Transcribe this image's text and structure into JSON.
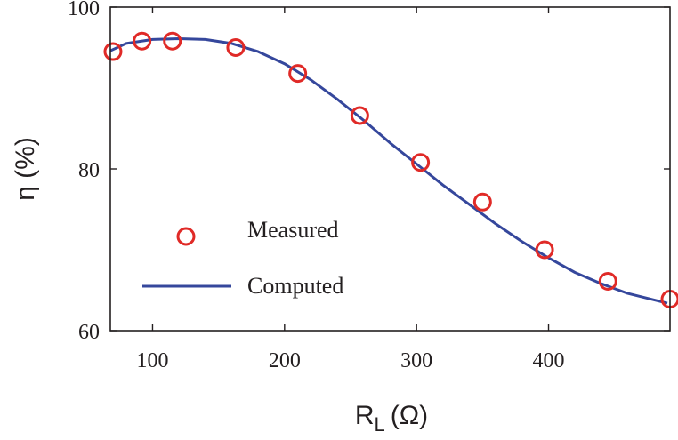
{
  "chart_data": {
    "type": "line",
    "title": "",
    "xlabel_main": "R",
    "xlabel_sub": "L",
    "xlabel_unit": "(Ω)",
    "ylabel": "η (%)",
    "xlim": [
      68,
      492
    ],
    "ylim": [
      60,
      100
    ],
    "xticks": [
      100,
      200,
      300,
      400
    ],
    "yticks": [
      60,
      80,
      100
    ],
    "legend_position": "lower-left",
    "series": [
      {
        "name": "Measured",
        "kind": "scatter",
        "color": "#e02a27",
        "x": [
          70,
          92,
          115,
          163,
          210,
          257,
          303,
          350,
          397,
          445,
          492
        ],
        "y": [
          94.5,
          95.8,
          95.8,
          95.0,
          91.8,
          86.6,
          80.8,
          75.9,
          70.0,
          66.1,
          63.9
        ]
      },
      {
        "name": "Computed",
        "kind": "line",
        "color": "#35479c",
        "x": [
          68,
          80,
          100,
          120,
          140,
          160,
          180,
          200,
          220,
          240,
          260,
          280,
          300,
          320,
          340,
          360,
          380,
          400,
          420,
          440,
          460,
          480,
          490
        ],
        "y": [
          94.6,
          95.5,
          96.0,
          96.1,
          96.0,
          95.5,
          94.5,
          93.0,
          91.0,
          88.6,
          86.0,
          83.2,
          80.6,
          78.0,
          75.6,
          73.2,
          71.0,
          69.0,
          67.2,
          65.8,
          64.6,
          63.8,
          63.4
        ]
      }
    ]
  }
}
